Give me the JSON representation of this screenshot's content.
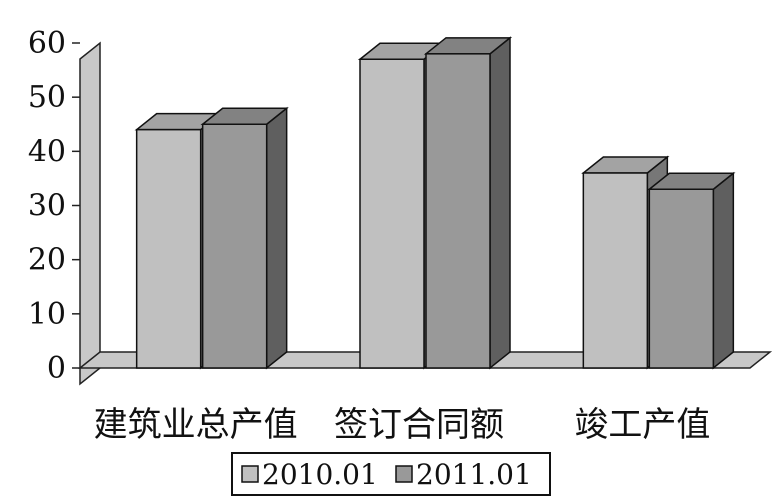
{
  "chart_data": {
    "type": "bar",
    "style": "3d-clustered-column",
    "categories": [
      "建筑业总产值",
      "签订合同额",
      "竣工产值"
    ],
    "series": [
      {
        "name": "2010.01",
        "values": [
          44,
          57,
          36
        ],
        "color": "#c0c0c0"
      },
      {
        "name": "2011.01",
        "values": [
          45,
          58,
          33
        ],
        "color": "#999999"
      }
    ],
    "ylim": [
      0,
      60
    ],
    "yticks": [
      "0",
      "10",
      "20",
      "30",
      "40",
      "50",
      "60"
    ],
    "title": "",
    "xlabel": "",
    "ylabel": "",
    "grid": false,
    "legend_position": "bottom"
  }
}
